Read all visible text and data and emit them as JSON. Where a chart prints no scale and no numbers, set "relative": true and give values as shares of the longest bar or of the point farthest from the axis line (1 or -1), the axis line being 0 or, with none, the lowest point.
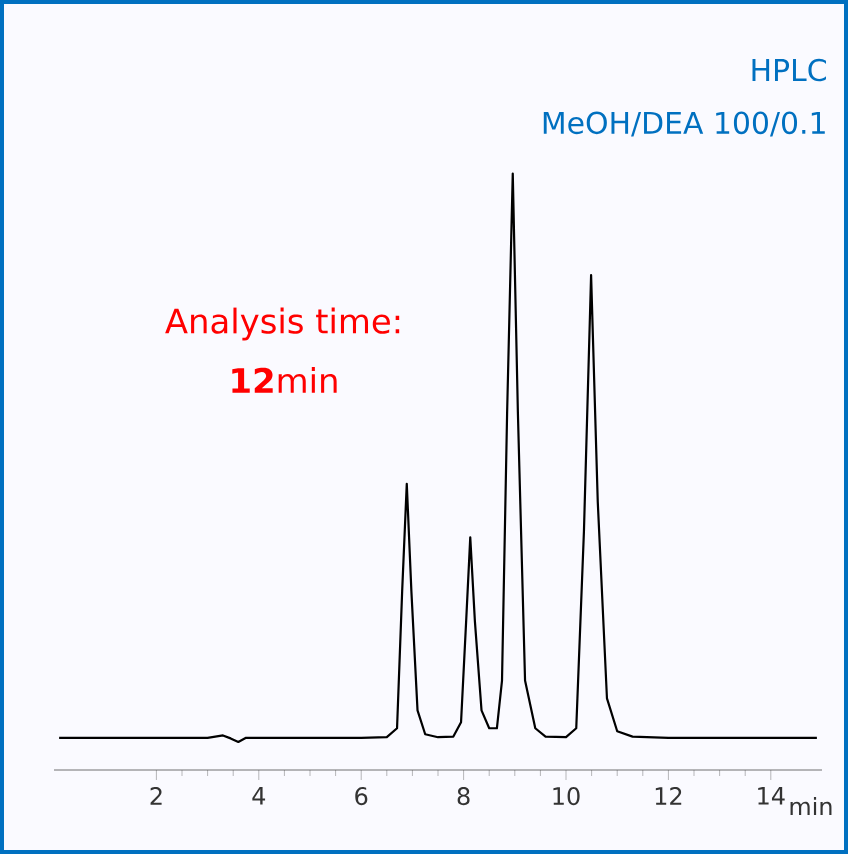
{
  "chart_data": {
    "type": "line",
    "relative": true,
    "title": "HPLC",
    "subtitle": "MeOH/DEA 100/0.1",
    "xlabel": "min",
    "annotations": [
      "Analysis time:",
      "**12**min"
    ],
    "xlim": [
      0,
      15
    ],
    "xticks": [
      2,
      4,
      6,
      8,
      10,
      12,
      14
    ],
    "x": [
      0.1,
      1,
      2,
      3,
      3.3,
      3.45,
      3.6,
      3.75,
      4,
      5,
      6,
      6.5,
      6.7,
      6.8,
      6.89,
      6.98,
      7.1,
      7.25,
      7.5,
      7.8,
      7.95,
      8.05,
      8.13,
      8.22,
      8.35,
      8.5,
      8.65,
      8.75,
      8.85,
      8.96,
      9.06,
      9.2,
      9.4,
      9.6,
      10.0,
      10.2,
      10.35,
      10.49,
      10.62,
      10.8,
      11.0,
      11.3,
      12,
      13,
      14,
      14.9
    ],
    "series": [
      {
        "color": "#000000",
        "values": [
          0.054,
          0.054,
          0.054,
          0.054,
          0.058,
          0.053,
          0.047,
          0.054,
          0.054,
          0.054,
          0.054,
          0.055,
          0.07,
          0.3,
          0.48,
          0.3,
          0.1,
          0.06,
          0.055,
          0.056,
          0.08,
          0.25,
          0.39,
          0.25,
          0.1,
          0.07,
          0.07,
          0.15,
          0.6,
          1.0,
          0.6,
          0.15,
          0.07,
          0.056,
          0.055,
          0.07,
          0.4,
          0.83,
          0.45,
          0.12,
          0.065,
          0.056,
          0.054,
          0.054,
          0.054,
          0.054
        ]
      }
    ]
  }
}
